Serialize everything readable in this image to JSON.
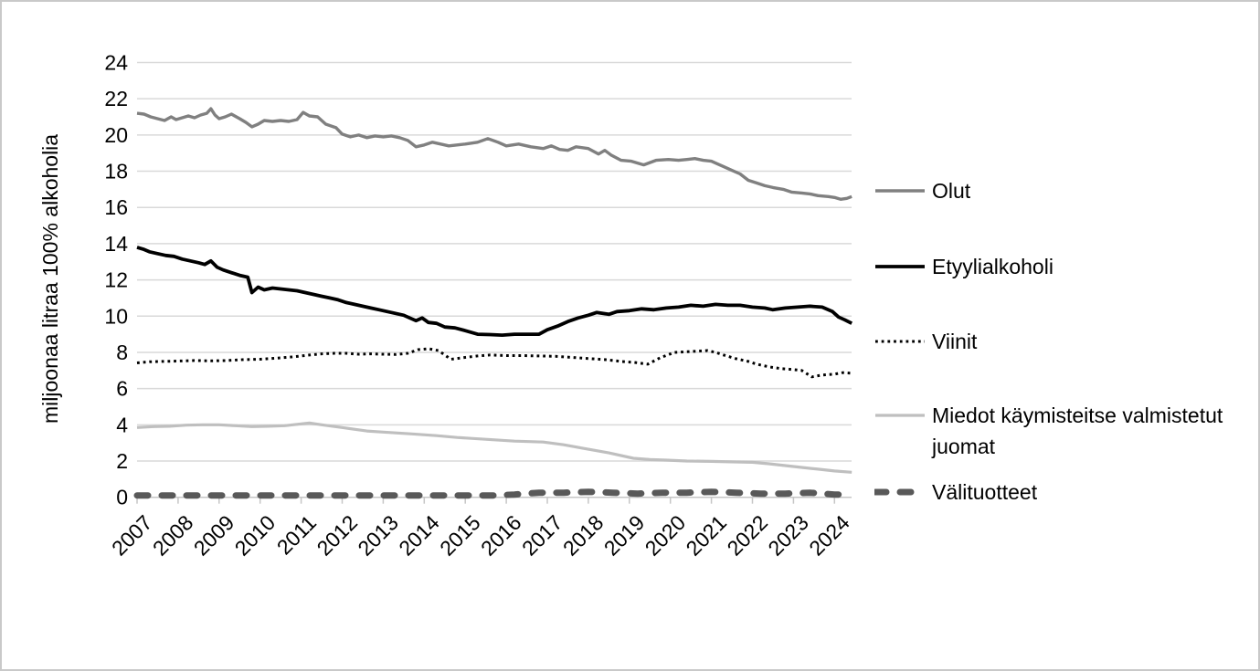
{
  "colors": {
    "gridline": "#d9d9d9",
    "axis_line": "#c6c6c6",
    "text": "#000000",
    "frame_border": "#c9c9c9",
    "background": "#ffffff"
  },
  "chart_data": {
    "type": "line",
    "title": "",
    "xlabel": "",
    "ylabel": "miljoonaa litraa 100% alkoholia",
    "ylim": [
      0,
      24
    ],
    "ytick_step": 2,
    "yticks": [
      0,
      2,
      4,
      6,
      8,
      10,
      12,
      14,
      16,
      18,
      20,
      22,
      24
    ],
    "x_labels": [
      "2007",
      "2008",
      "2009",
      "2010",
      "2011",
      "2012",
      "2013",
      "2014",
      "2015",
      "2016",
      "2017",
      "2018",
      "2019",
      "2020",
      "2021",
      "2022",
      "2023",
      "2024"
    ],
    "x_range": [
      2007,
      2024.5
    ],
    "grid": "horizontal",
    "legend_position": "right",
    "series": [
      {
        "id": "olut",
        "name": "Olut",
        "color": "#808080",
        "width": 3.4,
        "dash": "none",
        "linecap": "butt",
        "points": [
          [
            2007.0,
            21.2
          ],
          [
            2007.17,
            21.15
          ],
          [
            2007.33,
            21.0
          ],
          [
            2007.5,
            20.9
          ],
          [
            2007.67,
            20.8
          ],
          [
            2007.83,
            21.0
          ],
          [
            2007.95,
            20.85
          ],
          [
            2008.1,
            20.95
          ],
          [
            2008.25,
            21.05
          ],
          [
            2008.4,
            20.95
          ],
          [
            2008.55,
            21.1
          ],
          [
            2008.7,
            21.2
          ],
          [
            2008.8,
            21.45
          ],
          [
            2008.9,
            21.1
          ],
          [
            2009.0,
            20.9
          ],
          [
            2009.15,
            21.0
          ],
          [
            2009.3,
            21.15
          ],
          [
            2009.5,
            20.9
          ],
          [
            2009.65,
            20.7
          ],
          [
            2009.8,
            20.45
          ],
          [
            2009.95,
            20.6
          ],
          [
            2010.1,
            20.8
          ],
          [
            2010.3,
            20.75
          ],
          [
            2010.5,
            20.8
          ],
          [
            2010.7,
            20.75
          ],
          [
            2010.9,
            20.85
          ],
          [
            2011.05,
            21.25
          ],
          [
            2011.2,
            21.05
          ],
          [
            2011.4,
            21.0
          ],
          [
            2011.6,
            20.6
          ],
          [
            2011.85,
            20.4
          ],
          [
            2012.0,
            20.05
          ],
          [
            2012.2,
            19.9
          ],
          [
            2012.4,
            20.0
          ],
          [
            2012.6,
            19.85
          ],
          [
            2012.8,
            19.95
          ],
          [
            2013.0,
            19.9
          ],
          [
            2013.2,
            19.95
          ],
          [
            2013.4,
            19.85
          ],
          [
            2013.6,
            19.7
          ],
          [
            2013.8,
            19.35
          ],
          [
            2014.0,
            19.45
          ],
          [
            2014.2,
            19.6
          ],
          [
            2014.4,
            19.5
          ],
          [
            2014.6,
            19.4
          ],
          [
            2014.8,
            19.45
          ],
          [
            2015.0,
            19.5
          ],
          [
            2015.3,
            19.6
          ],
          [
            2015.55,
            19.8
          ],
          [
            2015.8,
            19.6
          ],
          [
            2016.0,
            19.4
          ],
          [
            2016.3,
            19.5
          ],
          [
            2016.6,
            19.35
          ],
          [
            2016.9,
            19.25
          ],
          [
            2017.1,
            19.4
          ],
          [
            2017.3,
            19.2
          ],
          [
            2017.5,
            19.15
          ],
          [
            2017.7,
            19.35
          ],
          [
            2018.0,
            19.25
          ],
          [
            2018.25,
            18.95
          ],
          [
            2018.4,
            19.15
          ],
          [
            2018.55,
            18.9
          ],
          [
            2018.8,
            18.6
          ],
          [
            2019.05,
            18.55
          ],
          [
            2019.35,
            18.35
          ],
          [
            2019.65,
            18.6
          ],
          [
            2019.95,
            18.65
          ],
          [
            2020.2,
            18.6
          ],
          [
            2020.4,
            18.65
          ],
          [
            2020.6,
            18.7
          ],
          [
            2020.8,
            18.6
          ],
          [
            2021.0,
            18.55
          ],
          [
            2021.15,
            18.4
          ],
          [
            2021.3,
            18.25
          ],
          [
            2021.5,
            18.05
          ],
          [
            2021.7,
            17.85
          ],
          [
            2021.9,
            17.5
          ],
          [
            2022.1,
            17.35
          ],
          [
            2022.3,
            17.2
          ],
          [
            2022.5,
            17.1
          ],
          [
            2022.75,
            17.0
          ],
          [
            2022.95,
            16.85
          ],
          [
            2023.2,
            16.8
          ],
          [
            2023.4,
            16.75
          ],
          [
            2023.6,
            16.65
          ],
          [
            2023.85,
            16.6
          ],
          [
            2024.0,
            16.55
          ],
          [
            2024.15,
            16.45
          ],
          [
            2024.3,
            16.5
          ],
          [
            2024.42,
            16.6
          ]
        ]
      },
      {
        "id": "etyylialkoholi",
        "name": "Etyylialkoholi",
        "color": "#000000",
        "width": 3.8,
        "dash": "none",
        "linecap": "butt",
        "points": [
          [
            2007.0,
            13.8
          ],
          [
            2007.15,
            13.7
          ],
          [
            2007.3,
            13.55
          ],
          [
            2007.5,
            13.45
          ],
          [
            2007.7,
            13.35
          ],
          [
            2007.9,
            13.3
          ],
          [
            2008.1,
            13.15
          ],
          [
            2008.3,
            13.05
          ],
          [
            2008.5,
            12.95
          ],
          [
            2008.65,
            12.85
          ],
          [
            2008.8,
            13.05
          ],
          [
            2008.95,
            12.7
          ],
          [
            2009.1,
            12.55
          ],
          [
            2009.3,
            12.4
          ],
          [
            2009.5,
            12.25
          ],
          [
            2009.7,
            12.15
          ],
          [
            2009.8,
            11.3
          ],
          [
            2009.95,
            11.6
          ],
          [
            2010.1,
            11.45
          ],
          [
            2010.3,
            11.55
          ],
          [
            2010.5,
            11.5
          ],
          [
            2010.7,
            11.45
          ],
          [
            2010.9,
            11.4
          ],
          [
            2011.1,
            11.3
          ],
          [
            2011.3,
            11.2
          ],
          [
            2011.5,
            11.1
          ],
          [
            2011.7,
            11.0
          ],
          [
            2011.9,
            10.9
          ],
          [
            2012.1,
            10.75
          ],
          [
            2012.3,
            10.65
          ],
          [
            2012.5,
            10.55
          ],
          [
            2012.7,
            10.45
          ],
          [
            2012.9,
            10.35
          ],
          [
            2013.1,
            10.25
          ],
          [
            2013.3,
            10.15
          ],
          [
            2013.5,
            10.05
          ],
          [
            2013.7,
            9.85
          ],
          [
            2013.8,
            9.75
          ],
          [
            2013.95,
            9.9
          ],
          [
            2014.1,
            9.65
          ],
          [
            2014.3,
            9.6
          ],
          [
            2014.5,
            9.4
          ],
          [
            2014.75,
            9.35
          ],
          [
            2015.0,
            9.2
          ],
          [
            2015.3,
            9.0
          ],
          [
            2015.6,
            8.98
          ],
          [
            2015.9,
            8.95
          ],
          [
            2016.2,
            9.0
          ],
          [
            2016.5,
            9.0
          ],
          [
            2016.8,
            9.0
          ],
          [
            2017.0,
            9.25
          ],
          [
            2017.25,
            9.45
          ],
          [
            2017.5,
            9.7
          ],
          [
            2017.75,
            9.9
          ],
          [
            2018.0,
            10.05
          ],
          [
            2018.2,
            10.2
          ],
          [
            2018.35,
            10.15
          ],
          [
            2018.5,
            10.1
          ],
          [
            2018.7,
            10.25
          ],
          [
            2019.0,
            10.3
          ],
          [
            2019.3,
            10.4
          ],
          [
            2019.6,
            10.35
          ],
          [
            2019.9,
            10.45
          ],
          [
            2020.2,
            10.5
          ],
          [
            2020.5,
            10.6
          ],
          [
            2020.8,
            10.55
          ],
          [
            2021.1,
            10.65
          ],
          [
            2021.4,
            10.6
          ],
          [
            2021.7,
            10.6
          ],
          [
            2022.0,
            10.5
          ],
          [
            2022.3,
            10.45
          ],
          [
            2022.5,
            10.35
          ],
          [
            2022.8,
            10.45
          ],
          [
            2023.1,
            10.5
          ],
          [
            2023.4,
            10.55
          ],
          [
            2023.7,
            10.5
          ],
          [
            2023.95,
            10.25
          ],
          [
            2024.1,
            9.95
          ],
          [
            2024.25,
            9.8
          ],
          [
            2024.42,
            9.6
          ]
        ]
      },
      {
        "id": "viinit",
        "name": "Viinit",
        "color": "#000000",
        "width": 3,
        "dash": "2.8 3.9",
        "linecap": "butt",
        "points": [
          [
            2007.0,
            7.42
          ],
          [
            2007.3,
            7.48
          ],
          [
            2007.6,
            7.5
          ],
          [
            2008.0,
            7.52
          ],
          [
            2008.4,
            7.55
          ],
          [
            2008.8,
            7.53
          ],
          [
            2009.2,
            7.55
          ],
          [
            2009.6,
            7.6
          ],
          [
            2010.0,
            7.62
          ],
          [
            2010.4,
            7.68
          ],
          [
            2010.8,
            7.75
          ],
          [
            2011.2,
            7.85
          ],
          [
            2011.5,
            7.92
          ],
          [
            2011.8,
            7.95
          ],
          [
            2012.1,
            7.95
          ],
          [
            2012.4,
            7.9
          ],
          [
            2012.7,
            7.92
          ],
          [
            2013.0,
            7.9
          ],
          [
            2013.3,
            7.88
          ],
          [
            2013.6,
            7.95
          ],
          [
            2013.85,
            8.15
          ],
          [
            2014.1,
            8.2
          ],
          [
            2014.35,
            8.1
          ],
          [
            2014.5,
            7.85
          ],
          [
            2014.65,
            7.62
          ],
          [
            2015.0,
            7.72
          ],
          [
            2015.3,
            7.8
          ],
          [
            2015.6,
            7.85
          ],
          [
            2016.0,
            7.82
          ],
          [
            2016.4,
            7.82
          ],
          [
            2016.8,
            7.8
          ],
          [
            2017.2,
            7.78
          ],
          [
            2017.6,
            7.72
          ],
          [
            2018.0,
            7.66
          ],
          [
            2018.4,
            7.6
          ],
          [
            2018.8,
            7.5
          ],
          [
            2019.1,
            7.45
          ],
          [
            2019.45,
            7.35
          ],
          [
            2019.75,
            7.7
          ],
          [
            2020.1,
            8.0
          ],
          [
            2020.5,
            8.05
          ],
          [
            2020.9,
            8.1
          ],
          [
            2021.1,
            8.0
          ],
          [
            2021.3,
            7.85
          ],
          [
            2021.6,
            7.65
          ],
          [
            2021.9,
            7.5
          ],
          [
            2022.1,
            7.35
          ],
          [
            2022.4,
            7.2
          ],
          [
            2022.7,
            7.1
          ],
          [
            2023.0,
            7.05
          ],
          [
            2023.2,
            7.0
          ],
          [
            2023.45,
            6.65
          ],
          [
            2023.7,
            6.75
          ],
          [
            2024.0,
            6.8
          ],
          [
            2024.2,
            6.88
          ],
          [
            2024.42,
            6.85
          ]
        ]
      },
      {
        "id": "miedot",
        "name": "Miedot käymisteitse valmistetut juomat",
        "color": "#bfbfbf",
        "width": 3.2,
        "dash": "none",
        "linecap": "butt",
        "points": [
          [
            2007.0,
            3.85
          ],
          [
            2007.4,
            3.9
          ],
          [
            2007.8,
            3.92
          ],
          [
            2008.2,
            3.98
          ],
          [
            2008.6,
            4.0
          ],
          [
            2009.0,
            4.0
          ],
          [
            2009.4,
            3.95
          ],
          [
            2009.8,
            3.9
          ],
          [
            2010.2,
            3.92
          ],
          [
            2010.6,
            3.95
          ],
          [
            2011.0,
            4.05
          ],
          [
            2011.2,
            4.1
          ],
          [
            2011.5,
            4.0
          ],
          [
            2012.0,
            3.85
          ],
          [
            2012.6,
            3.66
          ],
          [
            2013.0,
            3.6
          ],
          [
            2013.7,
            3.5
          ],
          [
            2014.3,
            3.4
          ],
          [
            2014.8,
            3.3
          ],
          [
            2015.5,
            3.2
          ],
          [
            2016.2,
            3.1
          ],
          [
            2016.9,
            3.05
          ],
          [
            2017.4,
            2.9
          ],
          [
            2018.0,
            2.65
          ],
          [
            2018.5,
            2.45
          ],
          [
            2019.1,
            2.15
          ],
          [
            2019.5,
            2.08
          ],
          [
            2019.9,
            2.05
          ],
          [
            2020.4,
            2.0
          ],
          [
            2021.0,
            1.98
          ],
          [
            2021.6,
            1.95
          ],
          [
            2022.0,
            1.93
          ],
          [
            2022.4,
            1.85
          ],
          [
            2022.8,
            1.75
          ],
          [
            2023.2,
            1.65
          ],
          [
            2023.6,
            1.55
          ],
          [
            2024.0,
            1.45
          ],
          [
            2024.42,
            1.38
          ]
        ]
      },
      {
        "id": "valituotteet",
        "name": "Välituotteet",
        "color": "#595959",
        "width": 7,
        "dash": "12 15",
        "linecap": "round",
        "points": [
          [
            2007.0,
            0.1
          ],
          [
            2008.0,
            0.1
          ],
          [
            2009.0,
            0.1
          ],
          [
            2010.0,
            0.1
          ],
          [
            2011.0,
            0.1
          ],
          [
            2012.0,
            0.1
          ],
          [
            2013.0,
            0.1
          ],
          [
            2014.0,
            0.1
          ],
          [
            2015.0,
            0.1
          ],
          [
            2015.7,
            0.1
          ],
          [
            2016.2,
            0.15
          ],
          [
            2016.8,
            0.25
          ],
          [
            2017.4,
            0.25
          ],
          [
            2018.0,
            0.3
          ],
          [
            2018.6,
            0.25
          ],
          [
            2019.2,
            0.2
          ],
          [
            2019.8,
            0.25
          ],
          [
            2020.4,
            0.25
          ],
          [
            2021.0,
            0.3
          ],
          [
            2021.6,
            0.25
          ],
          [
            2022.2,
            0.2
          ],
          [
            2022.8,
            0.2
          ],
          [
            2023.4,
            0.25
          ],
          [
            2024.0,
            0.15
          ],
          [
            2024.42,
            0.15
          ]
        ]
      }
    ]
  }
}
